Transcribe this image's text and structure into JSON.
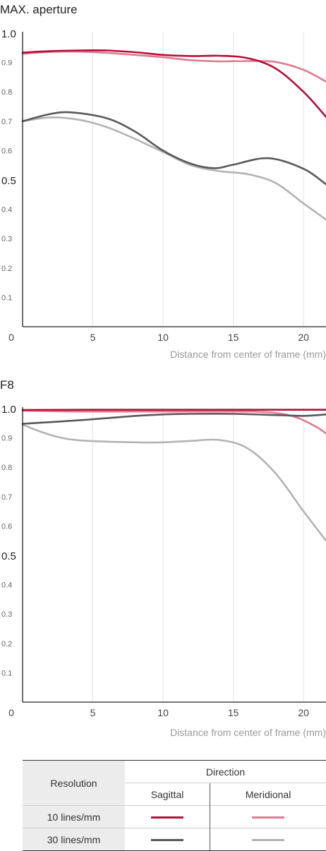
{
  "chart_data": [
    {
      "type": "line",
      "title": "MAX. aperture",
      "xlabel": "Distance from center of frame (mm)",
      "ylabel": "",
      "xlim": [
        0,
        21.6
      ],
      "ylim": [
        0,
        1.0
      ],
      "xticks": [
        "5",
        "10",
        "15",
        "20"
      ],
      "yticks": [
        "0.1",
        "0.2",
        "0.3",
        "0.4",
        "0.5",
        "0.6",
        "0.7",
        "0.8",
        "0.9",
        "1.0"
      ],
      "origin_label": "0",
      "grid": "vertical",
      "series": [
        {
          "color": "#e07a91",
          "x": [
            0,
            2,
            4,
            6,
            8,
            10,
            12,
            14,
            16,
            18,
            20,
            21.6
          ],
          "y": [
            0.93,
            0.936,
            0.937,
            0.933,
            0.926,
            0.918,
            0.908,
            0.904,
            0.905,
            0.902,
            0.875,
            0.835
          ]
        },
        {
          "color": "#b5103a",
          "x": [
            0,
            2,
            4,
            6,
            8,
            10,
            12,
            14,
            16,
            18,
            20,
            21.6
          ],
          "y": [
            0.934,
            0.939,
            0.941,
            0.941,
            0.935,
            0.926,
            0.922,
            0.923,
            0.915,
            0.88,
            0.8,
            0.715
          ]
        },
        {
          "color": "#b3b3b3",
          "x": [
            0,
            2,
            4,
            6,
            8,
            10,
            12,
            14,
            16,
            18,
            20,
            21.6
          ],
          "y": [
            0.7,
            0.713,
            0.705,
            0.68,
            0.64,
            0.595,
            0.55,
            0.53,
            0.52,
            0.49,
            0.42,
            0.365
          ]
        },
        {
          "color": "#595959",
          "x": [
            0,
            2,
            3.5,
            6,
            8,
            10,
            12,
            13.7,
            15,
            17.5,
            20,
            21.6
          ],
          "y": [
            0.7,
            0.725,
            0.73,
            0.71,
            0.665,
            0.6,
            0.555,
            0.54,
            0.552,
            0.574,
            0.538,
            0.485
          ]
        }
      ]
    },
    {
      "type": "line",
      "title": "F8",
      "xlabel": "Distance from center of frame (mm)",
      "ylabel": "",
      "xlim": [
        0,
        21.6
      ],
      "ylim": [
        0,
        1.0
      ],
      "xticks": [
        "5",
        "10",
        "15",
        "20"
      ],
      "yticks": [
        "0.1",
        "0.2",
        "0.3",
        "0.4",
        "0.5",
        "0.6",
        "0.7",
        "0.8",
        "0.9",
        "1.0"
      ],
      "origin_label": "0",
      "grid": "vertical",
      "series": [
        {
          "color": "#e07a91",
          "x": [
            0,
            4,
            8,
            12,
            16,
            18,
            19.5,
            21,
            21.6
          ],
          "y": [
            0.993,
            0.99,
            0.99,
            0.99,
            0.99,
            0.985,
            0.97,
            0.935,
            0.915
          ]
        },
        {
          "color": "#b5103a",
          "x": [
            0,
            5,
            10,
            15,
            20,
            21.6
          ],
          "y": [
            0.995,
            0.996,
            0.996,
            0.996,
            0.996,
            0.996
          ]
        },
        {
          "color": "#b3b3b3",
          "x": [
            0,
            2,
            4,
            8,
            10,
            12,
            14,
            16,
            18,
            20,
            21.6
          ],
          "y": [
            0.945,
            0.91,
            0.892,
            0.885,
            0.885,
            0.89,
            0.893,
            0.865,
            0.78,
            0.65,
            0.55
          ]
        },
        {
          "color": "#595959",
          "x": [
            0,
            4,
            8,
            10,
            12,
            15,
            18,
            20,
            21.6
          ],
          "y": [
            0.948,
            0.96,
            0.975,
            0.98,
            0.982,
            0.982,
            0.978,
            0.975,
            0.98
          ]
        }
      ]
    }
  ],
  "legend": {
    "resolution_header": "Resolution",
    "direction_header": "Direction",
    "sagittal": "Sagittal",
    "meridional": "Meridional",
    "rows": [
      {
        "label": "10 lines/mm",
        "sagittal_color": "#b5103a",
        "meridional_color": "#e07a91"
      },
      {
        "label": "30 lines/mm",
        "sagittal_color": "#595959",
        "meridional_color": "#b3b3b3"
      }
    ]
  }
}
